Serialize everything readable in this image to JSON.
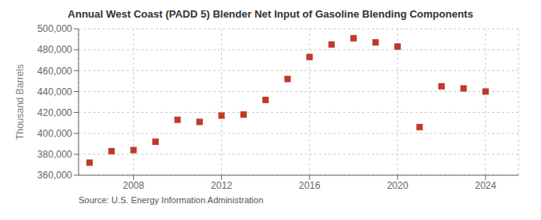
{
  "chart_data": {
    "type": "scatter",
    "title": "Annual West Coast (PADD 5) Blender Net Input of Gasoline Blending Components",
    "ylabel": "Thousand Barrels",
    "annotations": [
      "Source: U.S. Energy Information Administration"
    ],
    "x": [
      2006,
      2007,
      2008,
      2009,
      2010,
      2011,
      2012,
      2013,
      2014,
      2015,
      2016,
      2017,
      2018,
      2019,
      2020,
      2021,
      2022,
      2023,
      2024
    ],
    "values": [
      372000,
      383000,
      384000,
      392000,
      413000,
      411000,
      417000,
      418000,
      432000,
      452000,
      473000,
      485000,
      491000,
      487000,
      483000,
      406000,
      445000,
      443000,
      440000
    ],
    "color": "#c0392b",
    "marker": "square",
    "xlim": [
      2005.5,
      2025.5
    ],
    "xticks": [
      2008,
      2012,
      2016,
      2020,
      2024
    ],
    "ylim": [
      360000,
      500000
    ],
    "yticks": [
      {
        "value": 360000,
        "label": "360,000"
      },
      {
        "value": 380000,
        "label": "380,000"
      },
      {
        "value": 400000,
        "label": "400,000"
      },
      {
        "value": 420000,
        "label": "420,000"
      },
      {
        "value": 440000,
        "label": "440,000"
      },
      {
        "value": 460000,
        "label": "460,000"
      },
      {
        "value": 480000,
        "label": "480,000"
      },
      {
        "value": 500000,
        "label": "500,000"
      }
    ],
    "grid": true
  }
}
